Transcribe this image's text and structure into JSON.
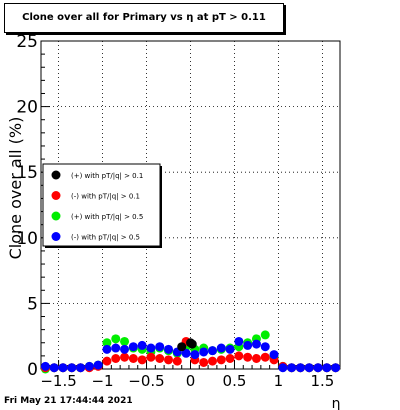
{
  "chart_data": {
    "type": "scatter",
    "title": "Clone  over all for Primary vs   η at pT > 0.11",
    "xlabel": "η",
    "ylabel": "Clone  over all (%)",
    "xlim": [
      -1.7,
      1.7
    ],
    "ylim": [
      0,
      25
    ],
    "xticks": [
      -1.5,
      -1,
      -0.5,
      0,
      0.5,
      1,
      1.5
    ],
    "xtick_labels": [
      "−1.5",
      "−1",
      "−0.5",
      "0",
      "0.5",
      "1",
      "1.5"
    ],
    "yticks": [
      0,
      5,
      10,
      15,
      20,
      25
    ],
    "grid": true,
    "legend_position": "center-left",
    "series": [
      {
        "name": "(+) with pT/|q| > 0.1",
        "color": "#000000",
        "x": [
          -0.1,
          0.0,
          0.02
        ],
        "y": [
          1.7,
          2.0,
          1.9
        ]
      },
      {
        "name": "(-) with pT/|q| > 0.1",
        "color": "#ff0000",
        "x": [
          -1.65,
          -1.55,
          -1.45,
          -1.35,
          -1.25,
          -1.15,
          -1.05,
          -0.95,
          -0.85,
          -0.75,
          -0.65,
          -0.55,
          -0.45,
          -0.35,
          -0.25,
          -0.15,
          -0.05,
          0.05,
          0.15,
          0.25,
          0.35,
          0.45,
          0.55,
          0.65,
          0.75,
          0.85,
          0.95,
          1.05,
          1.15,
          1.25,
          1.35,
          1.45,
          1.55,
          1.65
        ],
        "y": [
          0.1,
          0.1,
          0.1,
          0.1,
          0.1,
          0.1,
          0.2,
          0.6,
          0.8,
          0.9,
          0.8,
          0.7,
          0.9,
          0.8,
          0.7,
          0.6,
          2.1,
          0.7,
          0.5,
          0.6,
          0.7,
          0.8,
          1.0,
          0.9,
          0.8,
          0.9,
          0.7,
          0.2,
          0.1,
          0.1,
          0.1,
          0.1,
          0.1,
          0.1
        ]
      },
      {
        "name": "(+) with pT/|q| > 0.5",
        "color": "#00ee00",
        "x": [
          -1.65,
          -1.55,
          -1.45,
          -1.35,
          -1.25,
          -1.15,
          -1.05,
          -0.95,
          -0.85,
          -0.75,
          -0.65,
          -0.55,
          -0.45,
          -0.35,
          -0.25,
          -0.15,
          -0.05,
          0.05,
          0.15,
          0.25,
          0.35,
          0.45,
          0.55,
          0.65,
          0.75,
          0.85,
          0.95,
          1.05,
          1.15,
          1.25,
          1.35,
          1.45,
          1.55,
          1.65
        ],
        "y": [
          0.0,
          0.1,
          0.1,
          0.1,
          0.1,
          0.2,
          0.3,
          2.0,
          2.3,
          2.1,
          1.6,
          1.5,
          1.3,
          1.6,
          1.4,
          1.2,
          1.7,
          1.5,
          1.6,
          1.4,
          1.5,
          1.6,
          1.7,
          2.0,
          2.3,
          2.6,
          0.9,
          0.2,
          0.1,
          0.1,
          0.1,
          0.1,
          0.1,
          0.1
        ]
      },
      {
        "name": "(-) with pT/|q| > 0.5",
        "color": "#0000ff",
        "x": [
          -1.65,
          -1.55,
          -1.45,
          -1.35,
          -1.25,
          -1.15,
          -1.05,
          -0.95,
          -0.85,
          -0.75,
          -0.65,
          -0.55,
          -0.45,
          -0.35,
          -0.25,
          -0.15,
          -0.05,
          0.05,
          0.15,
          0.25,
          0.35,
          0.45,
          0.55,
          0.65,
          0.75,
          0.85,
          0.95,
          1.05,
          1.15,
          1.25,
          1.35,
          1.45,
          1.55,
          1.65
        ],
        "y": [
          0.2,
          0.1,
          0.1,
          0.1,
          0.1,
          0.2,
          0.3,
          1.5,
          1.6,
          1.5,
          1.7,
          1.8,
          1.6,
          1.7,
          1.5,
          1.3,
          1.2,
          1.1,
          1.3,
          1.4,
          1.6,
          1.5,
          2.1,
          1.8,
          1.9,
          1.7,
          1.1,
          0.1,
          0.1,
          0.1,
          0.1,
          0.1,
          0.1,
          0.1
        ]
      }
    ]
  },
  "footer": {
    "timestamp": "Fri May 21 17:44:44 2021"
  }
}
